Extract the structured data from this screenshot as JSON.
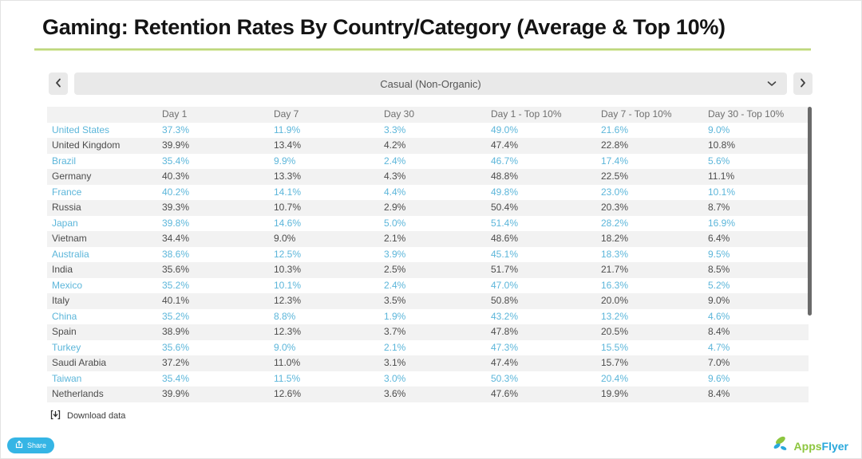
{
  "header": {
    "title": "Gaming: Retention Rates By Country/Category (Average & Top 10%)"
  },
  "nav": {
    "category_selected": "Casual (Non-Organic)"
  },
  "table": {
    "columns": [
      "",
      "Day 1",
      "Day 7",
      "Day 30",
      "Day 1 - Top 10%",
      "Day 7 - Top 10%",
      "Day 30 - Top 10%"
    ],
    "rows": [
      {
        "country": "United States",
        "highlighted": true,
        "values": [
          "37.3%",
          "11.9%",
          "3.3%",
          "49.0%",
          "21.6%",
          "9.0%"
        ]
      },
      {
        "country": "United Kingdom",
        "highlighted": false,
        "values": [
          "39.9%",
          "13.4%",
          "4.2%",
          "47.4%",
          "22.8%",
          "10.8%"
        ]
      },
      {
        "country": "Brazil",
        "highlighted": true,
        "values": [
          "35.4%",
          "9.9%",
          "2.4%",
          "46.7%",
          "17.4%",
          "5.6%"
        ]
      },
      {
        "country": "Germany",
        "highlighted": false,
        "values": [
          "40.3%",
          "13.3%",
          "4.3%",
          "48.8%",
          "22.5%",
          "11.1%"
        ]
      },
      {
        "country": "France",
        "highlighted": true,
        "values": [
          "40.2%",
          "14.1%",
          "4.4%",
          "49.8%",
          "23.0%",
          "10.1%"
        ]
      },
      {
        "country": "Russia",
        "highlighted": false,
        "values": [
          "39.3%",
          "10.7%",
          "2.9%",
          "50.4%",
          "20.3%",
          "8.7%"
        ]
      },
      {
        "country": "Japan",
        "highlighted": true,
        "values": [
          "39.8%",
          "14.6%",
          "5.0%",
          "51.4%",
          "28.2%",
          "16.9%"
        ]
      },
      {
        "country": "Vietnam",
        "highlighted": false,
        "values": [
          "34.4%",
          "9.0%",
          "2.1%",
          "48.6%",
          "18.2%",
          "6.4%"
        ]
      },
      {
        "country": "Australia",
        "highlighted": true,
        "values": [
          "38.6%",
          "12.5%",
          "3.9%",
          "45.1%",
          "18.3%",
          "9.5%"
        ]
      },
      {
        "country": "India",
        "highlighted": false,
        "values": [
          "35.6%",
          "10.3%",
          "2.5%",
          "51.7%",
          "21.7%",
          "8.5%"
        ]
      },
      {
        "country": "Mexico",
        "highlighted": true,
        "values": [
          "35.2%",
          "10.1%",
          "2.4%",
          "47.0%",
          "16.3%",
          "5.2%"
        ]
      },
      {
        "country": "Italy",
        "highlighted": false,
        "values": [
          "40.1%",
          "12.3%",
          "3.5%",
          "50.8%",
          "20.0%",
          "9.0%"
        ]
      },
      {
        "country": "China",
        "highlighted": true,
        "values": [
          "35.2%",
          "8.8%",
          "1.9%",
          "43.2%",
          "13.2%",
          "4.6%"
        ]
      },
      {
        "country": "Spain",
        "highlighted": false,
        "values": [
          "38.9%",
          "12.3%",
          "3.7%",
          "47.8%",
          "20.5%",
          "8.4%"
        ]
      },
      {
        "country": "Turkey",
        "highlighted": true,
        "values": [
          "35.6%",
          "9.0%",
          "2.1%",
          "47.3%",
          "15.5%",
          "4.7%"
        ]
      },
      {
        "country": "Saudi Arabia",
        "highlighted": false,
        "values": [
          "37.2%",
          "11.0%",
          "3.1%",
          "47.4%",
          "15.7%",
          "7.0%"
        ]
      },
      {
        "country": "Taiwan",
        "highlighted": true,
        "values": [
          "35.4%",
          "11.5%",
          "3.0%",
          "50.3%",
          "20.4%",
          "9.6%"
        ]
      },
      {
        "country": "Netherlands",
        "highlighted": false,
        "values": [
          "39.9%",
          "12.6%",
          "3.6%",
          "47.6%",
          "19.9%",
          "8.4%"
        ]
      }
    ]
  },
  "footer": {
    "download_label": "Download data",
    "share_label": "Share"
  },
  "branding": {
    "logo_text_part1": "Apps",
    "logo_text_part2": "Flyer"
  },
  "colors": {
    "accent_green": "#9cc13f",
    "highlight_blue": "#5cb6da",
    "share_button_blue": "#35b5e5",
    "row_stripe": "#f2f2f2",
    "body_text": "#4c4c4c",
    "header_text": "#6e6e6e"
  }
}
